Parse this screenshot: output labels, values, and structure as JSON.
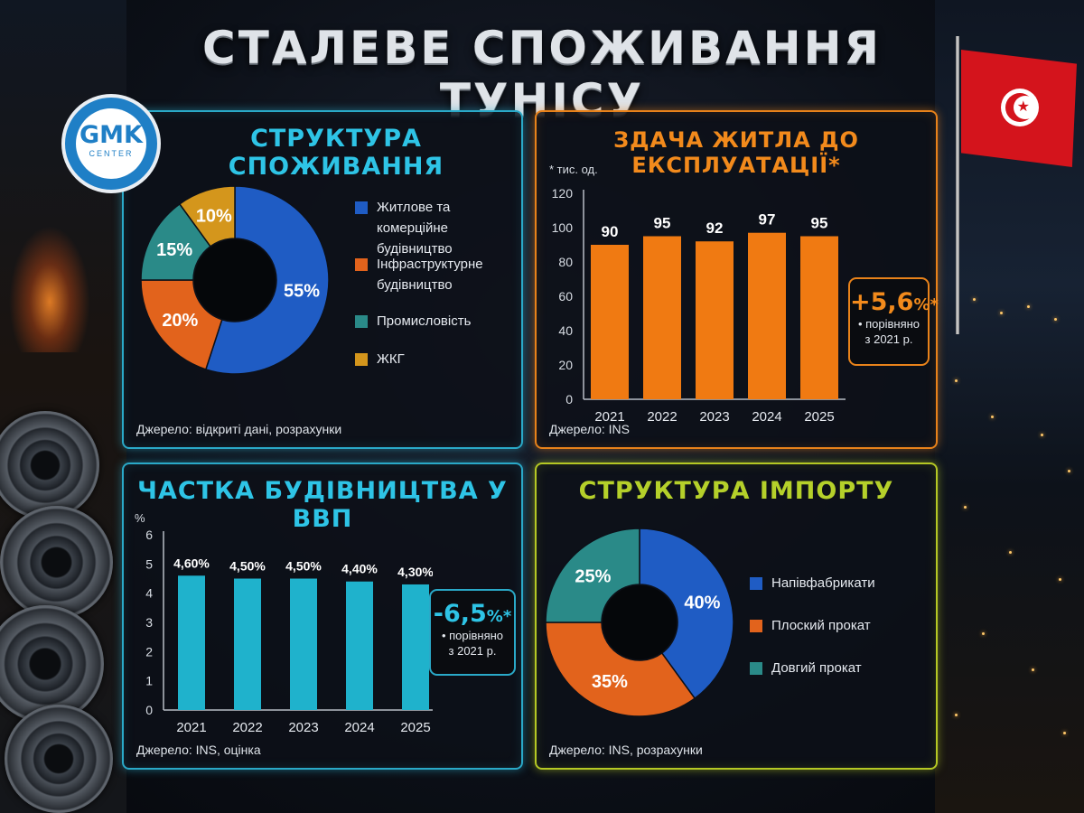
{
  "title": "СТАЛЕВЕ СПОЖИВАННЯ ТУНІСУ",
  "logo": {
    "text": "GMK",
    "sub": "CENTER"
  },
  "colors": {
    "blue": "#1f5cc4",
    "orange": "#e2631c",
    "teal": "#2a8a88",
    "gold": "#d4961c",
    "bar_orange": "#f07a12",
    "bar_cyan": "#1fb2cc",
    "cyan_title": "#2ec4e6",
    "orange_title": "#f28a1c",
    "lime_title": "#b5d02a"
  },
  "chart_data": [
    {
      "type": "pie",
      "title": "СТРУКТУРА СПОЖИВАННЯ",
      "labels": [
        "Житлове та комерційне будівництво",
        "Інфраструктурне будівництво",
        "Промисловість",
        "ЖКГ"
      ],
      "values": [
        55,
        20,
        15,
        10
      ],
      "value_labels": [
        "55%",
        "20%",
        "15%",
        "10%"
      ],
      "colors": [
        "#1f5cc4",
        "#e2631c",
        "#2a8a88",
        "#d4961c"
      ],
      "legend_placement": "right",
      "source": "Джерело: відкриті дані, розрахунки"
    },
    {
      "type": "bar",
      "title": "ЗДАЧА ЖИТЛА ДО ЕКСПЛУАТАЦІЇ*",
      "unit": "* тис. од.",
      "categories": [
        "2021",
        "2022",
        "2023",
        "2024",
        "2025"
      ],
      "values": [
        90,
        95,
        92,
        97,
        95
      ],
      "value_labels": [
        "90",
        "95",
        "92",
        "97",
        "95"
      ],
      "ylim": [
        0,
        120
      ],
      "yticks": [
        0,
        20,
        40,
        60,
        80,
        100,
        120
      ],
      "callout": {
        "value": "+5,6",
        "unit": "%*",
        "line1": "• порівняно",
        "line2": "з 2021 р."
      },
      "source": "Джерело: INS"
    },
    {
      "type": "bar",
      "title": "ЧАСТКА БУДІВНИЦТВА У ВВП",
      "unit": "%",
      "categories": [
        "2021",
        "2022",
        "2023",
        "2024",
        "2025"
      ],
      "values": [
        4.6,
        4.5,
        4.5,
        4.4,
        4.3
      ],
      "value_labels": [
        "4,60%",
        "4,50%",
        "4,50%",
        "4,40%",
        "4,30%"
      ],
      "ylim": [
        0,
        6
      ],
      "yticks": [
        0,
        1,
        2,
        3,
        4,
        5,
        6
      ],
      "callout": {
        "value": "-6,5",
        "unit": "%*",
        "line1": "• порівняно",
        "line2": "з 2021 р."
      },
      "source": "Джерело: INS, оцінка"
    },
    {
      "type": "pie",
      "title": "СТРУКТУРА ІМПОРТУ",
      "labels": [
        "Напівфабрикати",
        "Плоский прокат",
        "Довгий прокат"
      ],
      "values": [
        40,
        35,
        25
      ],
      "value_labels": [
        "40%",
        "35%",
        "25%"
      ],
      "colors": [
        "#1f5cc4",
        "#e2631c",
        "#2a8a88"
      ],
      "legend_placement": "right",
      "source": "Джерело: INS, розрахунки"
    }
  ]
}
